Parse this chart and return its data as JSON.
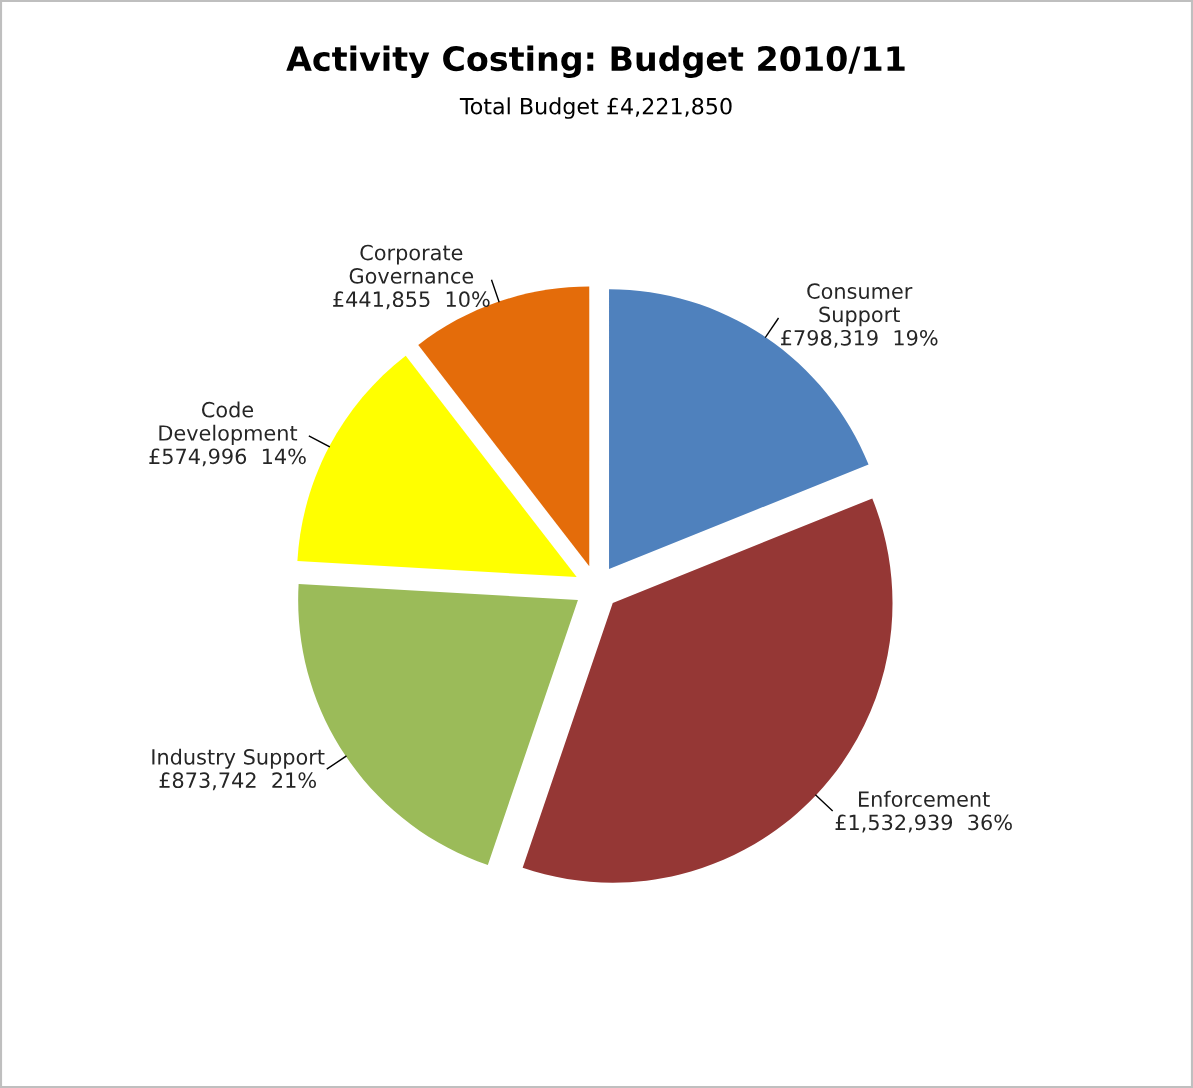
{
  "chart_data": {
    "type": "pie",
    "title": "Activity Costing: Budget 2010/11",
    "subtitle": "Total Budget £4,221,850",
    "categories": [
      "Consumer\nSupport",
      "Enforcement",
      "Industry Support",
      "Code\nDevelopment",
      "Corporate\nGovernance"
    ],
    "values": [
      798319,
      1532939,
      873742,
      574996,
      441855
    ],
    "value_labels": [
      "£798,319  19%",
      "£1,532,939  36%",
      "£873,742  21%",
      "£574,996  14%",
      "£441,855  10%"
    ],
    "colors": [
      "#4f81bd",
      "#953735",
      "#9bbb59",
      "#ffff00",
      "#e46c0a"
    ],
    "legend": false
  }
}
